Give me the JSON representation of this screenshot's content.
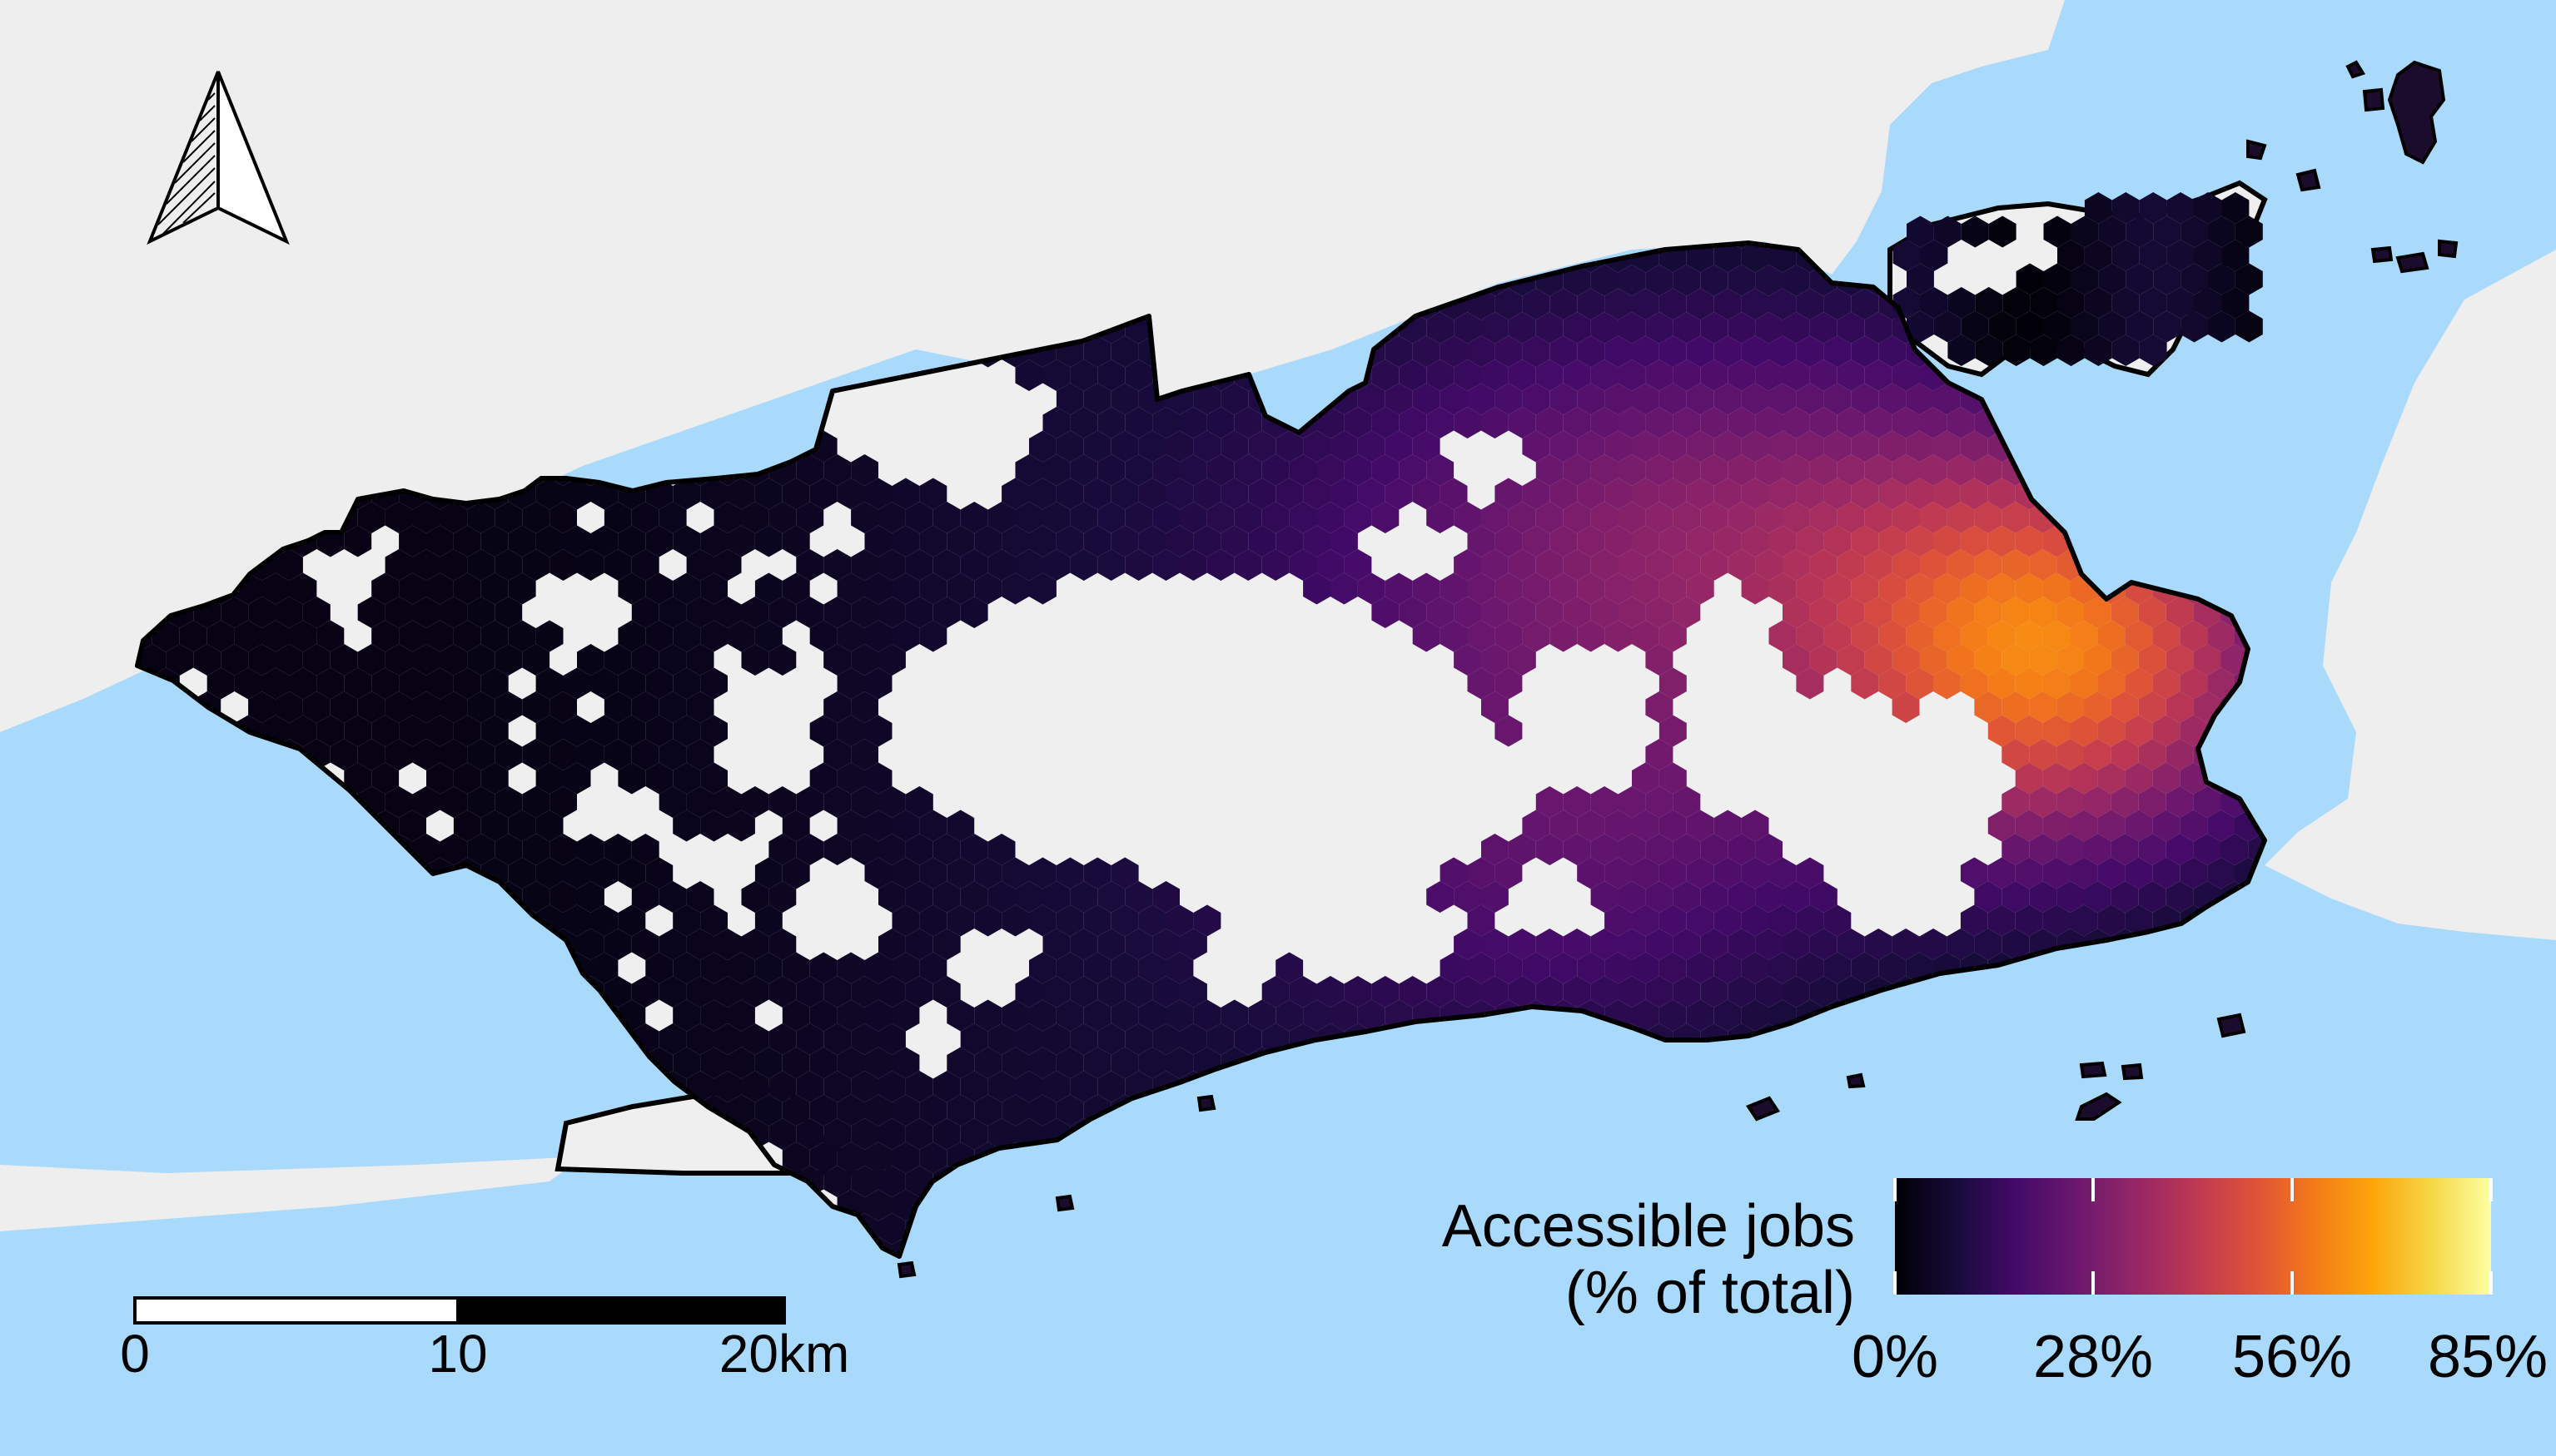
{
  "colors": {
    "sea": "#a9d9fb",
    "land": "#eeeeee",
    "boundary": "#000000",
    "hex_outline": "#1a0d24"
  },
  "legend": {
    "title_line1": "Accessible jobs",
    "title_line2": "(% of total)",
    "ticks": [
      "0%",
      "28%",
      "56%",
      "85%"
    ],
    "range": [
      0,
      85
    ],
    "colormap": "inferno"
  },
  "scale_bar": {
    "labels": [
      "0",
      "10",
      "20km"
    ],
    "distances_km": [
      0,
      10,
      20
    ]
  },
  "north_arrow": {
    "icon": "north-arrow-icon"
  }
}
